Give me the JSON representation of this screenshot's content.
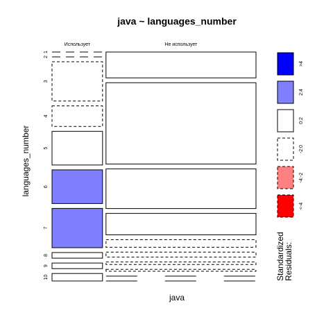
{
  "chart_data": {
    "type": "mosaic",
    "title": "java ~ languages_number",
    "xlabel": "java",
    "ylabel": "languages_number",
    "categories": [
      "1",
      "2",
      "3",
      "4",
      "5",
      "6",
      "7",
      "8",
      "9",
      "10"
    ],
    "series": [
      {
        "name": "Использует",
        "values": [
          0,
          0,
          21,
          11,
          18,
          18,
          21,
          3,
          3,
          4
        ],
        "residual_class": [
          "-2:0",
          "-2:0",
          "-2:0",
          "-2:0",
          "0:2",
          "2:4",
          "2:4",
          "0:2",
          "0:2",
          "0:2"
        ]
      },
      {
        "name": "Не использует",
        "values": [
          41,
          129,
          63,
          34,
          12,
          8,
          4,
          3,
          0,
          0
        ],
        "residual_class": [
          "0:2",
          "0:2",
          "0:2",
          "0:2",
          "-2:0",
          "-2:0",
          "-2:0",
          "-2:0",
          "0:2",
          "0:2"
        ]
      }
    ],
    "legend_title": [
      "Standardized",
      "Residuals:"
    ],
    "legend": [
      {
        "label": ">4",
        "color": "#0000ff",
        "dashed": false
      },
      {
        "label": "2:4",
        "color": "#8080ff",
        "dashed": false
      },
      {
        "label": "0:2",
        "color": "#ffffff",
        "dashed": false
      },
      {
        "label": "-2:0",
        "color": "#ffffff",
        "dashed": true
      },
      {
        "label": "-4:-2",
        "color": "#ff8080",
        "dashed": true
      },
      {
        "label": "<-4",
        "color": "#ff0000",
        "dashed": true
      }
    ]
  }
}
